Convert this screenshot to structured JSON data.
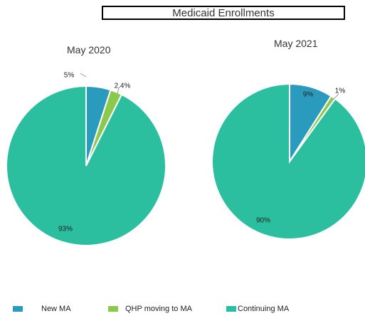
{
  "chart_data": {
    "type": "pie",
    "title": "Medicaid Enrollments",
    "categories": [
      "New MA",
      "QHP moving to MA",
      "Continuing MA"
    ],
    "colors": [
      "#2a9bbd",
      "#8cc84b",
      "#2bbf9f"
    ],
    "pies": [
      {
        "title": "May 2020",
        "values": [
          5,
          2.4,
          93
        ],
        "labels": [
          "5%",
          "2.4%",
          "93%"
        ]
      },
      {
        "title": "May 2021",
        "values": [
          9,
          1,
          90
        ],
        "labels": [
          "9%",
          "1%",
          "90%"
        ]
      }
    ],
    "legend": "bottom-left"
  }
}
